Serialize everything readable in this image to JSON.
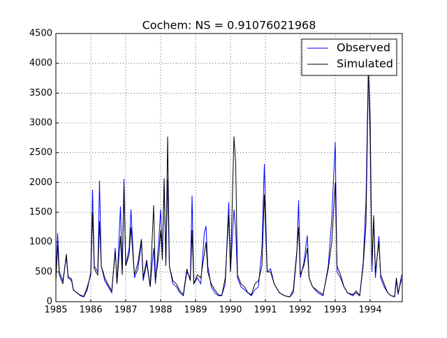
{
  "chart_data": {
    "type": "line",
    "title": "Cochem: NS = 0.91076021968",
    "x": [
      1985.0,
      1985.05,
      1985.1,
      1985.2,
      1985.3,
      1985.35,
      1985.45,
      1985.5,
      1985.6,
      1985.7,
      1985.8,
      1985.9,
      1986.0,
      1986.05,
      1986.1,
      1986.2,
      1986.25,
      1986.3,
      1986.4,
      1986.5,
      1986.6,
      1986.7,
      1986.75,
      1986.85,
      1986.9,
      1986.95,
      1987.0,
      1987.1,
      1987.15,
      1987.25,
      1987.35,
      1987.45,
      1987.5,
      1987.6,
      1987.7,
      1987.8,
      1987.85,
      1987.95,
      1988.0,
      1988.05,
      1988.1,
      1988.15,
      1988.2,
      1988.25,
      1988.35,
      1988.45,
      1988.55,
      1988.65,
      1988.75,
      1988.85,
      1988.9,
      1988.95,
      1989.05,
      1989.15,
      1989.25,
      1989.3,
      1989.35,
      1989.45,
      1989.55,
      1989.65,
      1989.75,
      1989.85,
      1989.95,
      1990.0,
      1990.1,
      1990.15,
      1990.2,
      1990.3,
      1990.4,
      1990.5,
      1990.6,
      1990.7,
      1990.8,
      1990.9,
      1990.97,
      1991.05,
      1991.15,
      1991.25,
      1991.4,
      1991.55,
      1991.7,
      1991.8,
      1991.9,
      1991.95,
      1992.0,
      1992.1,
      1992.2,
      1992.25,
      1992.35,
      1992.5,
      1992.65,
      1992.8,
      1992.9,
      1993.0,
      1993.05,
      1993.15,
      1993.25,
      1993.35,
      1993.5,
      1993.6,
      1993.7,
      1993.8,
      1993.88,
      1993.95,
      1994.0,
      1994.05,
      1994.1,
      1994.15,
      1994.25,
      1994.3,
      1994.4,
      1994.5,
      1994.6,
      1994.7,
      1994.75,
      1994.8,
      1994.9
    ],
    "series": [
      {
        "name": "Observed",
        "color": "#0000ff",
        "values": [
          400,
          1150,
          500,
          350,
          750,
          400,
          350,
          200,
          150,
          100,
          80,
          200,
          500,
          1880,
          600,
          500,
          2030,
          600,
          350,
          250,
          150,
          900,
          300,
          1600,
          500,
          2060,
          600,
          900,
          1550,
          400,
          550,
          1000,
          350,
          650,
          250,
          900,
          300,
          1050,
          1550,
          800,
          2000,
          700,
          2050,
          600,
          300,
          250,
          150,
          100,
          500,
          400,
          1780,
          300,
          400,
          300,
          1150,
          1270,
          600,
          250,
          150,
          100,
          100,
          300,
          1670,
          500,
          1550,
          1200,
          400,
          250,
          200,
          150,
          100,
          200,
          250,
          900,
          2310,
          500,
          550,
          300,
          150,
          100,
          80,
          150,
          800,
          1700,
          400,
          650,
          1110,
          400,
          250,
          150,
          100,
          600,
          1400,
          2680,
          500,
          400,
          250,
          150,
          100,
          150,
          100,
          650,
          1700,
          4000,
          2650,
          500,
          1400,
          400,
          1100,
          400,
          250,
          150,
          100,
          80,
          350,
          120,
          450
        ]
      },
      {
        "name": "Simulated",
        "color": "#000000",
        "values": [
          350,
          950,
          450,
          300,
          800,
          420,
          380,
          200,
          150,
          110,
          90,
          250,
          450,
          1500,
          550,
          450,
          1350,
          600,
          400,
          280,
          180,
          850,
          300,
          1100,
          450,
          1950,
          600,
          800,
          1250,
          450,
          650,
          1050,
          400,
          700,
          250,
          1620,
          350,
          800,
          1200,
          700,
          2070,
          600,
          2770,
          600,
          350,
          300,
          180,
          120,
          550,
          350,
          1200,
          300,
          450,
          400,
          800,
          1000,
          500,
          300,
          200,
          120,
          100,
          400,
          1450,
          500,
          2770,
          2300,
          450,
          300,
          250,
          150,
          120,
          300,
          350,
          600,
          1800,
          500,
          500,
          300,
          150,
          100,
          80,
          200,
          850,
          1250,
          450,
          600,
          900,
          400,
          250,
          180,
          120,
          550,
          1000,
          2000,
          600,
          450,
          250,
          150,
          120,
          180,
          100,
          600,
          1300,
          3900,
          3100,
          600,
          1450,
          500,
          1000,
          450,
          300,
          150,
          100,
          90,
          400,
          150,
          380
        ]
      }
    ],
    "xlim": [
      1985,
      1994.92
    ],
    "xticks": [
      1985,
      1986,
      1987,
      1988,
      1989,
      1990,
      1991,
      1992,
      1993,
      1994
    ],
    "ylim": [
      0,
      4500
    ],
    "yticks": [
      0,
      500,
      1000,
      1500,
      2000,
      2500,
      3000,
      3500,
      4000,
      4500
    ],
    "grid": true,
    "legend": "upper right"
  }
}
